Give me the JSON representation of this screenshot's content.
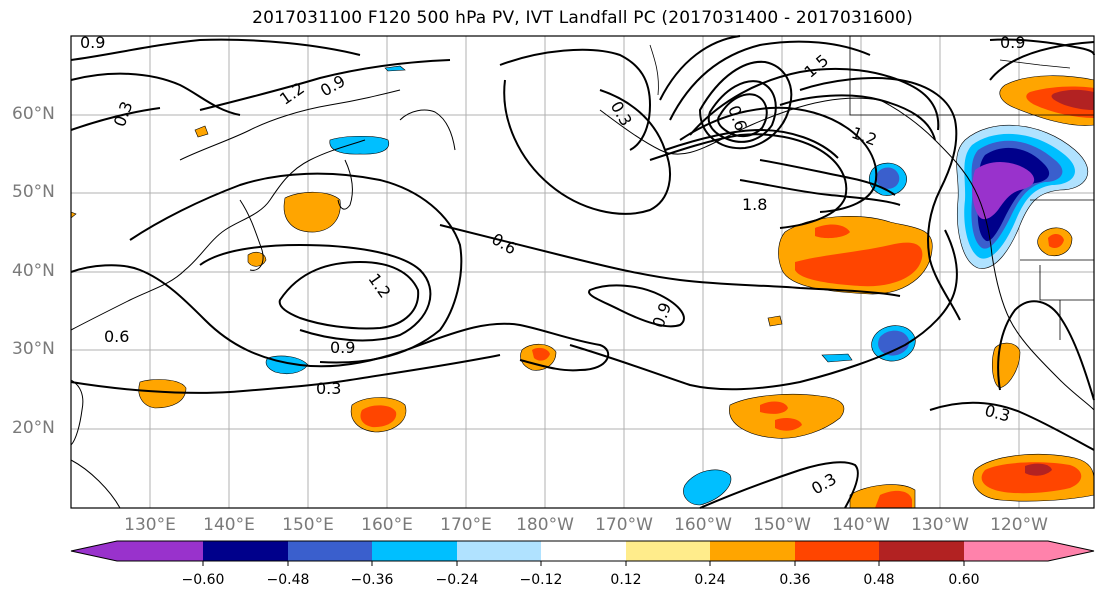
{
  "title": "2017031100 F120 500 hPa PV, IVT Landfall PC (2017031400 - 2017031600)",
  "map": {
    "lat_labels": [
      "60°N",
      "50°N",
      "40°N",
      "30°N",
      "20°N"
    ],
    "lon_labels": [
      "130°E",
      "140°E",
      "150°E",
      "160°E",
      "170°E",
      "180°W",
      "170°W",
      "160°W",
      "150°W",
      "140°W",
      "130°W",
      "120°W"
    ],
    "contour_labels": [
      "0.9",
      "1.2",
      "0.9",
      "0.3",
      "0.3",
      "0.6",
      "1.2",
      "0.9",
      "0.6",
      "0.9",
      "0.3",
      "1.5",
      "1.2",
      "1.8",
      "0.3",
      "0.3",
      "0.9",
      "0.6"
    ],
    "colors": {
      "n060": "#9932cc",
      "n048": "#00008b",
      "n036": "#3a5fcd",
      "n024": "#00bfff",
      "n012": "#b0e2ff",
      "zero": "#ffffff",
      "p012": "#ffec8b",
      "p024": "#ffa500",
      "p036": "#ff4500",
      "p048": "#b22222",
      "p060": "#ff82ab"
    }
  },
  "colorbar": {
    "ticks": [
      "−0.60",
      "−0.48",
      "−0.36",
      "−0.24",
      "−0.12",
      "0.12",
      "0.24",
      "0.36",
      "0.48",
      "0.60"
    ]
  }
}
